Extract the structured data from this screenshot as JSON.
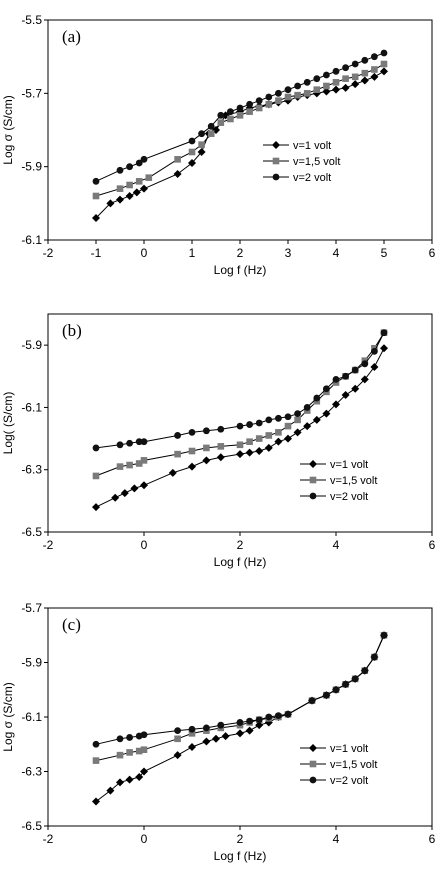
{
  "chart_data": [
    {
      "type": "line",
      "panel_label": "(a)",
      "xlabel": "Log f (Hz)",
      "ylabel": "Log σ (S/cm)",
      "xlim": [
        -2,
        6
      ],
      "ylim": [
        -6.1,
        -5.5
      ],
      "xticks": [
        -2,
        -1,
        0,
        1,
        2,
        3,
        4,
        5,
        6
      ],
      "yticks": [
        -6.1,
        -5.9,
        -5.7,
        -5.5
      ],
      "xtick_labels": [
        "-2",
        "-1",
        "0",
        "1",
        "2",
        "3",
        "4",
        "5",
        "6"
      ],
      "ytick_labels": [
        "-6.1",
        "-5.9",
        "-5.7",
        "-5.5"
      ],
      "grid": false,
      "legend_position": "center-right",
      "series": [
        {
          "name": "v=1 volt",
          "marker": "diamond",
          "x": [
            -1,
            -0.7,
            -0.5,
            -0.3,
            -0.15,
            0,
            0.7,
            1,
            1.2,
            1.35,
            1.5,
            1.7,
            2,
            2.2,
            2.4,
            2.6,
            2.8,
            3,
            3.2,
            3.4,
            3.6,
            3.8,
            4,
            4.2,
            4.4,
            4.6,
            4.8,
            5
          ],
          "y": [
            -6.04,
            -6.0,
            -5.99,
            -5.98,
            -5.97,
            -5.96,
            -5.92,
            -5.89,
            -5.86,
            -5.81,
            -5.8,
            -5.76,
            -5.75,
            -5.74,
            -5.735,
            -5.73,
            -5.725,
            -5.72,
            -5.71,
            -5.705,
            -5.7,
            -5.695,
            -5.69,
            -5.685,
            -5.675,
            -5.665,
            -5.655,
            -5.64
          ]
        },
        {
          "name": "v=1,5 volt",
          "marker": "square",
          "x": [
            -1,
            -0.5,
            -0.3,
            -0.1,
            0.1,
            0.7,
            1,
            1.2,
            1.4,
            1.6,
            1.8,
            2,
            2.2,
            2.4,
            2.6,
            2.8,
            3,
            3.2,
            3.4,
            3.6,
            3.8,
            4,
            4.2,
            4.4,
            4.6,
            4.8,
            5
          ],
          "y": [
            -5.98,
            -5.96,
            -5.95,
            -5.94,
            -5.93,
            -5.88,
            -5.86,
            -5.84,
            -5.81,
            -5.78,
            -5.77,
            -5.76,
            -5.75,
            -5.74,
            -5.73,
            -5.72,
            -5.71,
            -5.705,
            -5.7,
            -5.69,
            -5.68,
            -5.67,
            -5.66,
            -5.655,
            -5.645,
            -5.635,
            -5.62
          ]
        },
        {
          "name": "v=2 volt",
          "marker": "circle",
          "x": [
            -1,
            -0.5,
            -0.3,
            -0.1,
            0,
            1,
            1.2,
            1.4,
            1.6,
            1.8,
            2,
            2.2,
            2.4,
            2.6,
            2.8,
            3,
            3.2,
            3.4,
            3.6,
            3.8,
            4,
            4.2,
            4.4,
            4.6,
            4.8,
            5
          ],
          "y": [
            -5.94,
            -5.91,
            -5.9,
            -5.89,
            -5.88,
            -5.83,
            -5.81,
            -5.79,
            -5.76,
            -5.75,
            -5.74,
            -5.73,
            -5.72,
            -5.71,
            -5.7,
            -5.69,
            -5.68,
            -5.67,
            -5.66,
            -5.65,
            -5.64,
            -5.63,
            -5.62,
            -5.61,
            -5.6,
            -5.59
          ]
        }
      ]
    },
    {
      "type": "line",
      "panel_label": "(b)",
      "xlabel": "Log f (Hz)",
      "ylabel": "Log( (S/cm)",
      "xlim": [
        -2,
        6
      ],
      "ylim": [
        -6.5,
        -5.8
      ],
      "xticks": [
        -2,
        0,
        2,
        4,
        6
      ],
      "yticks": [
        -6.5,
        -6.3,
        -6.1,
        -5.9
      ],
      "xtick_labels": [
        "-2",
        "0",
        "2",
        "4",
        "6"
      ],
      "ytick_labels": [
        "-6.5",
        "-6.3",
        "-6.1",
        "-5.9"
      ],
      "grid": false,
      "legend_position": "bottom-right",
      "series": [
        {
          "name": "v=1  volt",
          "marker": "diamond",
          "x": [
            -1,
            -0.6,
            -0.4,
            -0.2,
            0,
            0.6,
            1,
            1.3,
            1.6,
            2,
            2.2,
            2.4,
            2.6,
            2.8,
            3,
            3.2,
            3.4,
            3.6,
            3.8,
            4,
            4.2,
            4.4,
            4.6,
            4.8,
            5
          ],
          "y": [
            -6.42,
            -6.39,
            -6.375,
            -6.36,
            -6.35,
            -6.31,
            -6.29,
            -6.27,
            -6.26,
            -6.25,
            -6.245,
            -6.24,
            -6.23,
            -6.21,
            -6.2,
            -6.18,
            -6.16,
            -6.14,
            -6.12,
            -6.09,
            -6.06,
            -6.04,
            -6.01,
            -5.97,
            -5.91
          ]
        },
        {
          "name": "v=1,5  volt",
          "marker": "square",
          "x": [
            -1,
            -0.5,
            -0.3,
            -0.1,
            0,
            0.7,
            1,
            1.3,
            1.6,
            2,
            2.2,
            2.4,
            2.6,
            2.8,
            3,
            3.2,
            3.4,
            3.6,
            3.8,
            4,
            4.2,
            4.4,
            4.6,
            4.8,
            5
          ],
          "y": [
            -6.32,
            -6.29,
            -6.285,
            -6.28,
            -6.27,
            -6.25,
            -6.24,
            -6.23,
            -6.225,
            -6.22,
            -6.21,
            -6.2,
            -6.19,
            -6.18,
            -6.16,
            -6.14,
            -6.11,
            -6.08,
            -6.05,
            -6.02,
            -6.0,
            -5.98,
            -5.95,
            -5.91,
            -5.86
          ]
        },
        {
          "name": "v=2  volt",
          "marker": "circle",
          "x": [
            -1,
            -0.5,
            -0.3,
            -0.1,
            0,
            0.7,
            1,
            1.3,
            1.6,
            2,
            2.2,
            2.4,
            2.6,
            2.8,
            3,
            3.2,
            3.4,
            3.6,
            3.8,
            4,
            4.2,
            4.4,
            4.6,
            4.8,
            5
          ],
          "y": [
            -6.23,
            -6.22,
            -6.215,
            -6.21,
            -6.21,
            -6.19,
            -6.18,
            -6.175,
            -6.17,
            -6.16,
            -6.155,
            -6.15,
            -6.14,
            -6.135,
            -6.13,
            -6.12,
            -6.1,
            -6.07,
            -6.04,
            -6.01,
            -6.0,
            -5.98,
            -5.96,
            -5.92,
            -5.86
          ]
        }
      ]
    },
    {
      "type": "line",
      "panel_label": "(c)",
      "xlabel": "Log f (Hz)",
      "ylabel": "Log σ (S/cm)",
      "xlim": [
        -2,
        6
      ],
      "ylim": [
        -6.5,
        -5.7
      ],
      "xticks": [
        -2,
        0,
        2,
        4,
        6
      ],
      "yticks": [
        -6.5,
        -6.3,
        -6.1,
        -5.9,
        -5.7
      ],
      "xtick_labels": [
        "-2",
        "0",
        "2",
        "4",
        "6"
      ],
      "ytick_labels": [
        "-6.5",
        "-6.3",
        "-6.1",
        "-5.9",
        "-5.7"
      ],
      "grid": false,
      "legend_position": "bottom-right",
      "series": [
        {
          "name": "v=1 volt",
          "marker": "diamond",
          "x": [
            -1,
            -0.7,
            -0.5,
            -0.3,
            -0.1,
            0,
            0.7,
            1,
            1.3,
            1.5,
            1.7,
            2,
            2.2,
            2.4,
            2.6,
            2.8,
            3,
            3.5,
            3.8,
            4,
            4.2,
            4.4,
            4.6,
            4.8,
            5
          ],
          "y": [
            -6.41,
            -6.37,
            -6.34,
            -6.33,
            -6.32,
            -6.3,
            -6.24,
            -6.21,
            -6.19,
            -6.18,
            -6.17,
            -6.16,
            -6.15,
            -6.13,
            -6.12,
            -6.1,
            -6.09,
            -6.04,
            -6.02,
            -6.0,
            -5.98,
            -5.96,
            -5.93,
            -5.88,
            -5.8
          ]
        },
        {
          "name": "v=1,5 volt",
          "marker": "square",
          "x": [
            -1,
            -0.5,
            -0.3,
            -0.1,
            0,
            0.7,
            1,
            1.3,
            1.6,
            2,
            2.2,
            2.4,
            2.6,
            2.8,
            3,
            3.5,
            3.8,
            4,
            4.2,
            4.4,
            4.6,
            4.8,
            5
          ],
          "y": [
            -6.26,
            -6.24,
            -6.23,
            -6.225,
            -6.22,
            -6.18,
            -6.16,
            -6.15,
            -6.14,
            -6.13,
            -6.12,
            -6.11,
            -6.105,
            -6.1,
            -6.09,
            -6.04,
            -6.02,
            -6.0,
            -5.98,
            -5.96,
            -5.93,
            -5.88,
            -5.8
          ]
        },
        {
          "name": "v=2 volt",
          "marker": "circle",
          "x": [
            -1,
            -0.5,
            -0.3,
            -0.1,
            0,
            0.7,
            1,
            1.3,
            1.6,
            2,
            2.2,
            2.4,
            2.6,
            2.8,
            3,
            3.5,
            3.8,
            4,
            4.2,
            4.4,
            4.6,
            4.8,
            5
          ],
          "y": [
            -6.2,
            -6.18,
            -6.175,
            -6.17,
            -6.165,
            -6.15,
            -6.145,
            -6.14,
            -6.13,
            -6.12,
            -6.115,
            -6.11,
            -6.1,
            -6.095,
            -6.09,
            -6.04,
            -6.02,
            -6.0,
            -5.98,
            -5.96,
            -5.93,
            -5.88,
            -5.8
          ]
        }
      ]
    }
  ]
}
